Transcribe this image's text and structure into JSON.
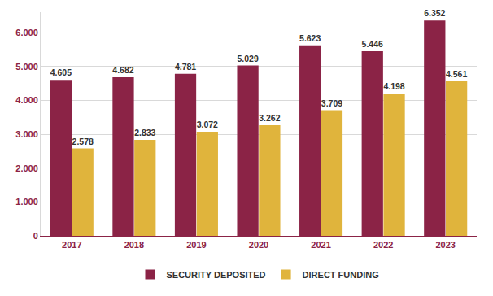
{
  "chart_data": {
    "type": "bar",
    "categories": [
      "2017",
      "2018",
      "2019",
      "2020",
      "2021",
      "2022",
      "2023"
    ],
    "series": [
      {
        "name": "SECURITY DEPOSITED",
        "color": "#8b2346",
        "values": [
          4605,
          4682,
          4781,
          5029,
          5623,
          5446,
          6352
        ],
        "value_labels": [
          "4.605",
          "4.682",
          "4.781",
          "5.029",
          "5.623",
          "5.446",
          "6.352"
        ]
      },
      {
        "name": "DIRECT FUNDING",
        "color": "#e0b43c",
        "values": [
          2578,
          2833,
          3072,
          3262,
          3709,
          4198,
          4561
        ],
        "value_labels": [
          "2.578",
          "2.833",
          "3.072",
          "3.262",
          "3.709",
          "4.198",
          "4.561"
        ]
      }
    ],
    "ylim": [
      0,
      6600
    ],
    "yticks": [
      0,
      {
        "value": 1000,
        "label": "1.000"
      },
      {
        "value": 2000,
        "label": "2.000"
      },
      {
        "value": 3000,
        "label": "3.000"
      },
      {
        "value": 4000,
        "label": "4.000"
      },
      {
        "value": 5000,
        "label": "5.000"
      },
      {
        "value": 6000,
        "label": "6.000"
      }
    ],
    "grid": true,
    "legend": "bottom",
    "data_labels": true
  }
}
